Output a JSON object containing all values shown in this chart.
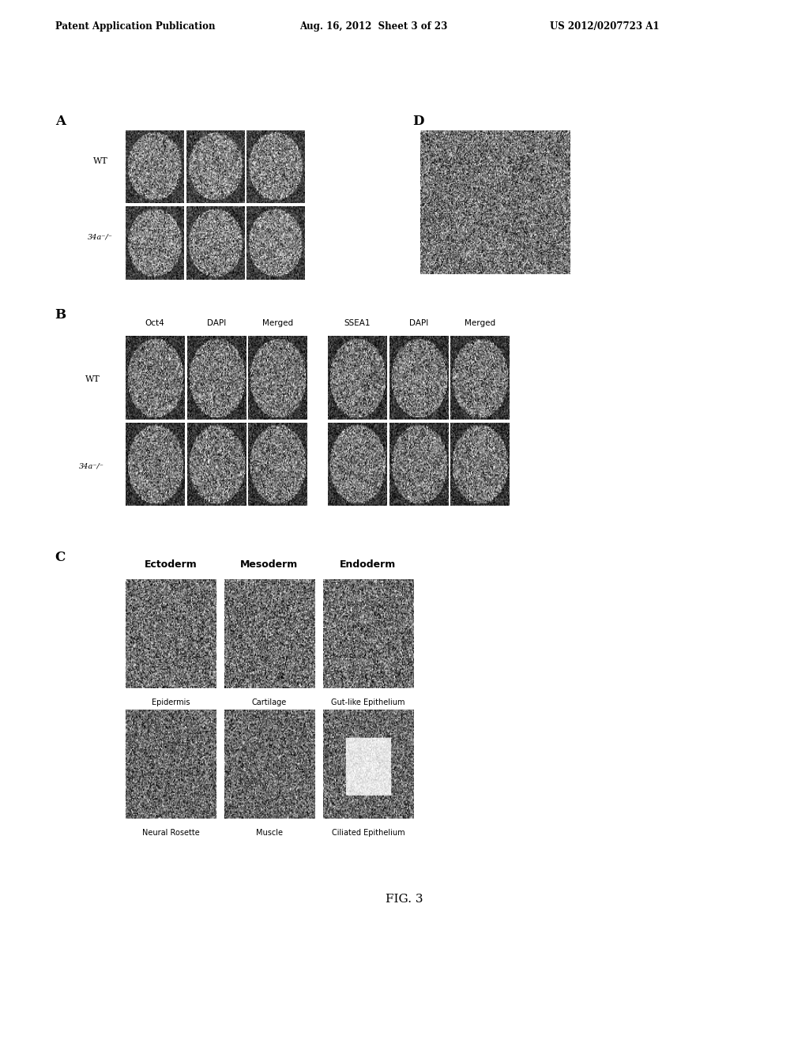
{
  "header_left": "Patent Application Publication",
  "header_mid": "Aug. 16, 2012  Sheet 3 of 23",
  "header_right": "US 2012/0207723 A1",
  "label_A": "A",
  "label_B": "B",
  "label_C": "C",
  "label_D": "D",
  "label_WT_A": "WT",
  "label_34a_A": "34a⁻/⁻",
  "label_WT_B": "WT",
  "label_34a_B": "34a⁻/⁻",
  "B_col_labels": [
    "Oct4",
    "DAPI",
    "Merged",
    "SSEA1",
    "DAPI",
    "Merged"
  ],
  "C_row1_headers": [
    "Ectoderm",
    "Mesoderm",
    "Endoderm"
  ],
  "C_row1_sublabels": [
    "Epidermis",
    "Cartilage",
    "Gut-like Epithelium"
  ],
  "C_row2_sublabels": [
    "Neural Rosette",
    "Muscle",
    "Ciliated Epithelium"
  ],
  "fig_label": "FIG. 3",
  "bg_color": "#ffffff",
  "text_color": "#000000",
  "header_fontsize": 8.5,
  "section_label_fontsize": 12,
  "row_label_fontsize": 8,
  "col_label_fontsize": 7.5,
  "sublabel_fontsize": 7,
  "fig_label_fontsize": 11
}
